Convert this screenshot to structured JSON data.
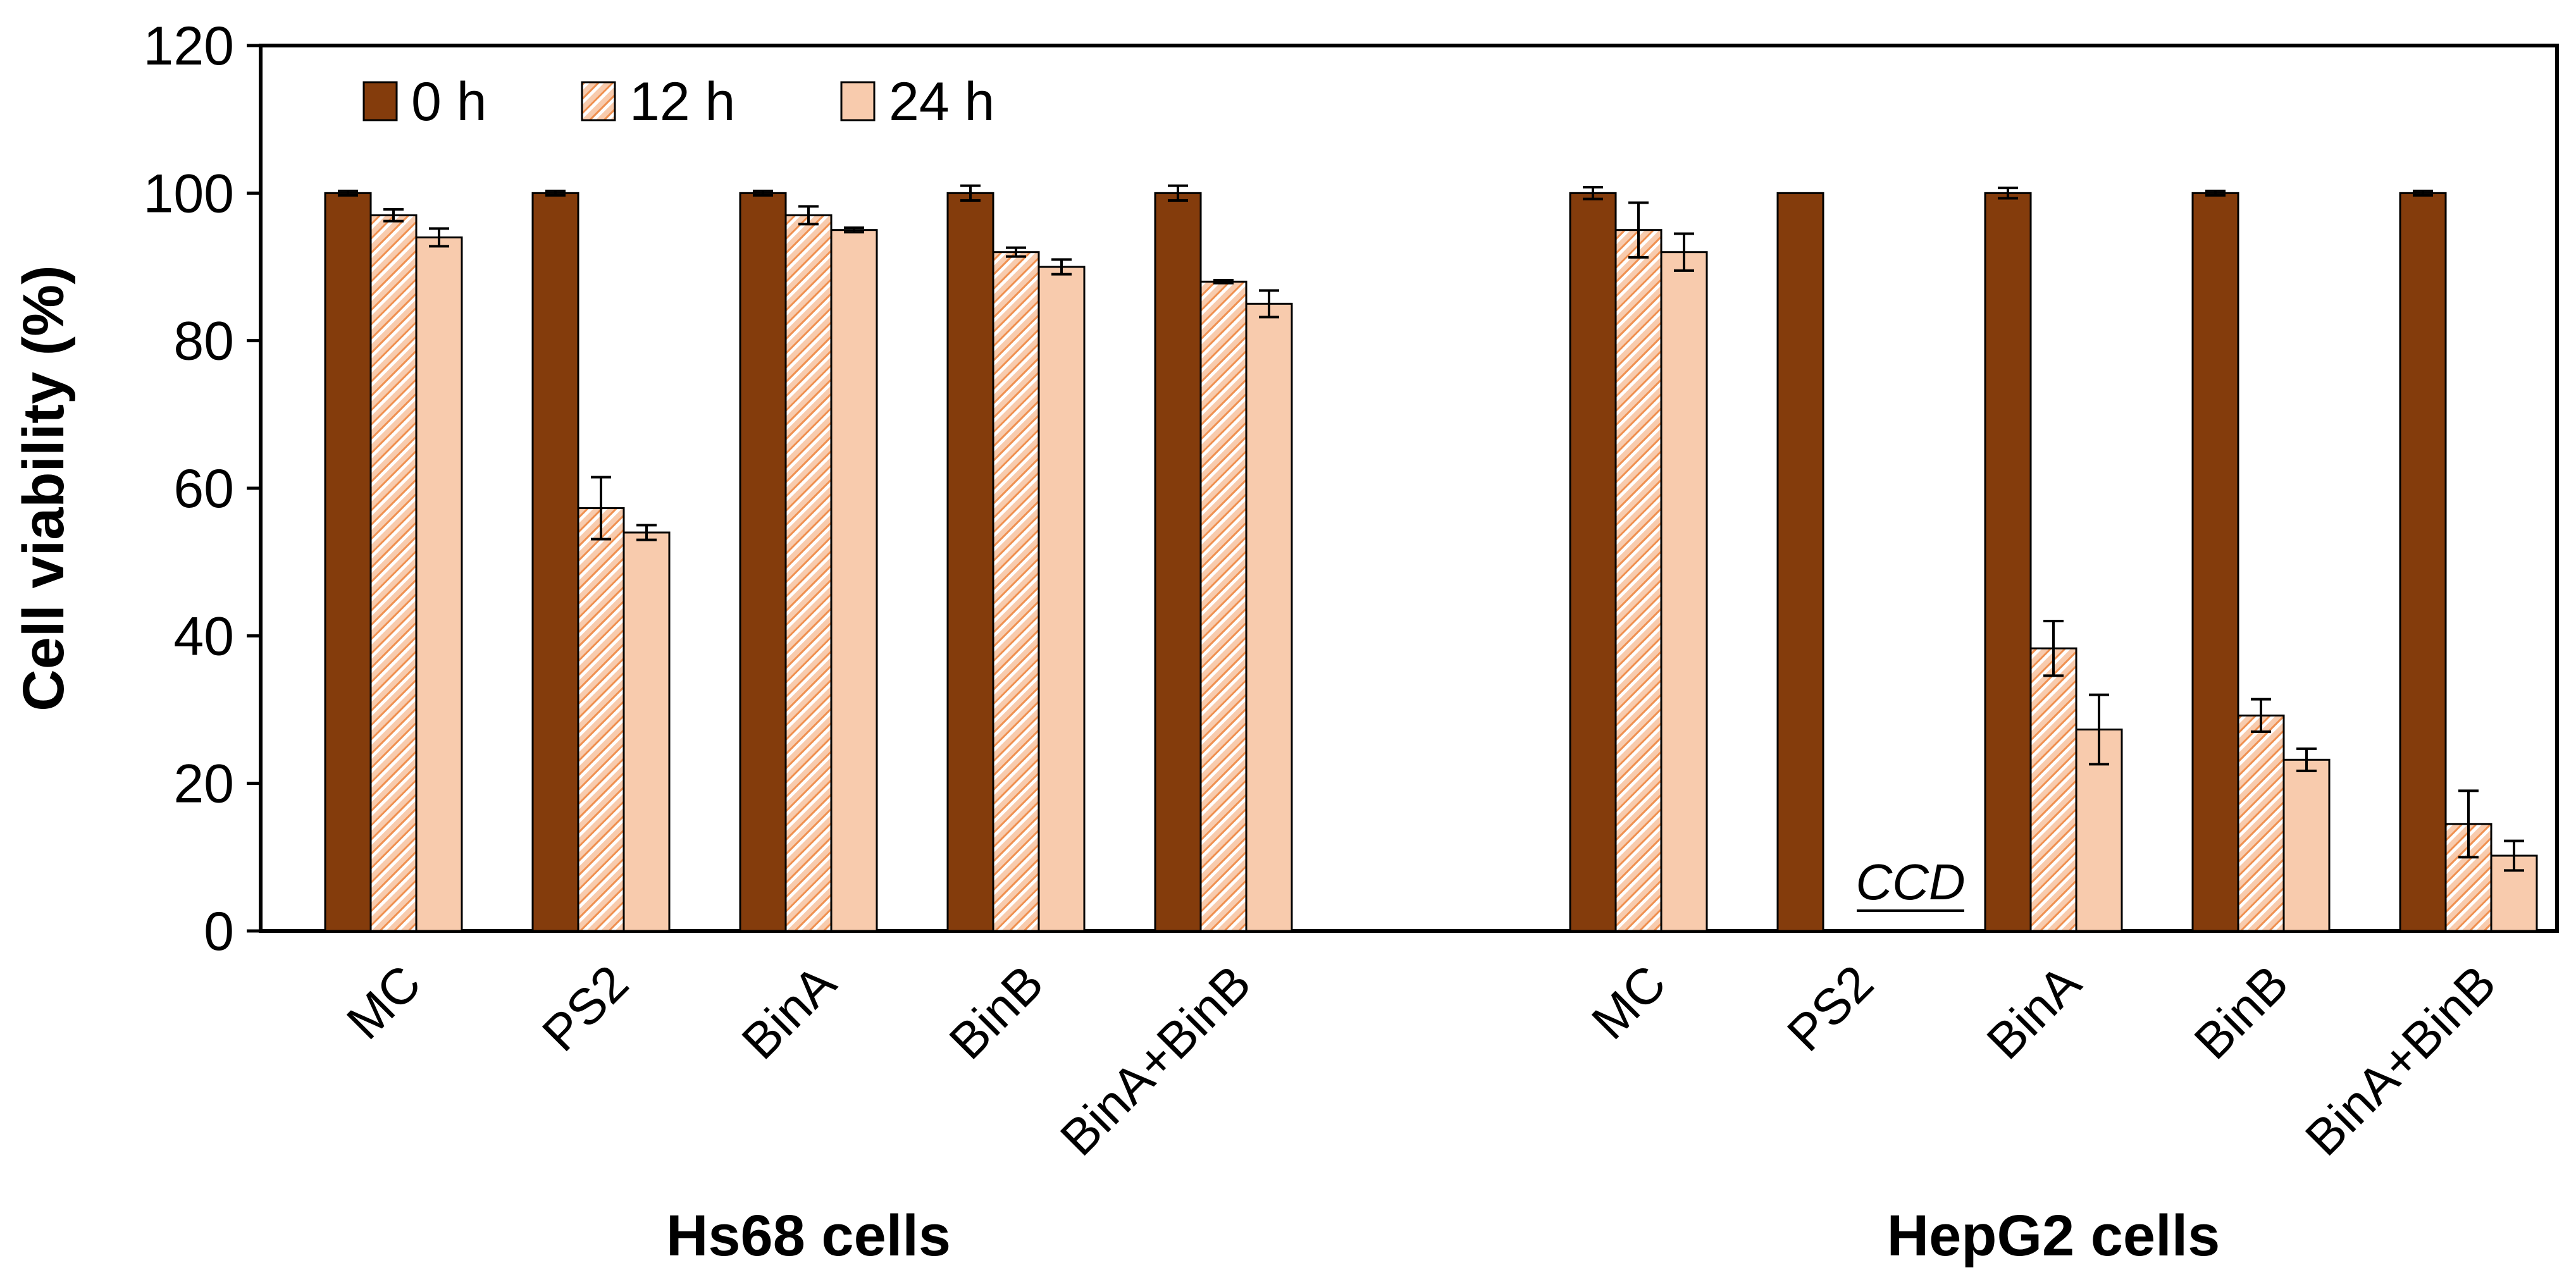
{
  "chart_data": {
    "type": "bar",
    "title": "",
    "ylabel": "Cell viability (%)",
    "xlabel": "",
    "ylim": [
      0,
      120
    ],
    "yticks": [
      "0",
      "20",
      "40",
      "60",
      "80",
      "100",
      "120"
    ],
    "legend_position": "top-left",
    "colors": {
      "0 h": "#843C0C",
      "12 h": "#F8CBAD",
      "24 h": "#F8CBAD",
      "hatch": "#ED7D31"
    },
    "groups": [
      {
        "name": "Hs68 cells",
        "categories": [
          "MC",
          "PS2",
          "BinA",
          "BinB",
          "BinA+BinB"
        ]
      },
      {
        "name": "HepG2 cells",
        "categories": [
          "MC",
          "PS2",
          "BinA",
          "BinB",
          "BinA+BinB"
        ]
      }
    ],
    "series": [
      {
        "name": "0 h",
        "pattern": "solid",
        "values": [
          100,
          100,
          100,
          100,
          100,
          100,
          100,
          100,
          100,
          100
        ],
        "errors": [
          0.3,
          0.3,
          0.3,
          1.0,
          1.0,
          0.8,
          0,
          0.7,
          0.3,
          0.3
        ]
      },
      {
        "name": "12 h",
        "pattern": "hatched",
        "values": [
          97,
          57.3,
          97,
          92,
          88,
          95,
          null,
          38.3,
          29.2,
          14.5
        ],
        "errors": [
          0.8,
          4.2,
          1.2,
          0.6,
          0.2,
          3.7,
          null,
          3.7,
          2.2,
          4.5
        ]
      },
      {
        "name": "24 h",
        "pattern": "solid",
        "values": [
          94,
          54,
          95,
          90,
          85,
          92,
          null,
          27.3,
          23.2,
          10.2
        ],
        "errors": [
          1.2,
          1.0,
          0.3,
          1.0,
          1.8,
          2.5,
          null,
          4.7,
          1.5,
          2.0
        ]
      }
    ],
    "annotations": [
      {
        "text": "CCD",
        "group": 1,
        "category": 1
      }
    ]
  }
}
